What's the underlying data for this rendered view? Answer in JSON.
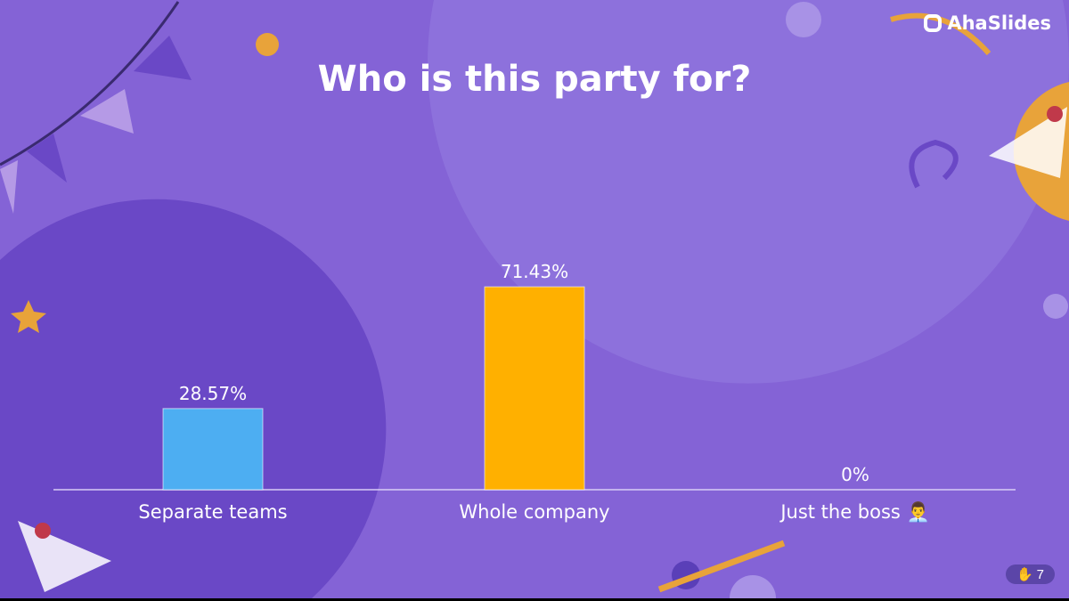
{
  "slide": {
    "title": "Who is this party for?",
    "brand": "AhaSlides",
    "response_count": "7",
    "response_icon": "raised-hand-icon"
  },
  "chart_data": {
    "type": "bar",
    "categories": [
      "Separate teams",
      "Whole company",
      "Just the boss 👨‍💼"
    ],
    "values": [
      28.57,
      71.43,
      0
    ],
    "data_labels": [
      "28.57%",
      "71.43%",
      "0%"
    ],
    "colors": [
      "#4daef2",
      "#ffb000",
      "#e05a8a"
    ],
    "ylim": [
      0,
      100
    ],
    "grid": false
  }
}
